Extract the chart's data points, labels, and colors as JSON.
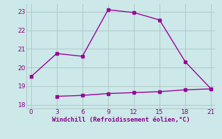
{
  "line1_x": [
    0,
    3,
    6,
    9,
    12,
    15,
    18,
    21
  ],
  "line1_y": [
    19.5,
    20.75,
    20.6,
    23.1,
    22.95,
    22.55,
    20.3,
    18.85
  ],
  "line2_x": [
    3,
    6,
    9,
    12,
    15,
    18,
    21
  ],
  "line2_y": [
    18.45,
    18.5,
    18.6,
    18.65,
    18.7,
    18.8,
    18.85
  ],
  "line_color": "#990099",
  "bg_color": "#cce8e8",
  "grid_color": "#b0c8c8",
  "xlabel": "Windchill (Refroidissement éolien,°C)",
  "xlim": [
    -0.5,
    21.5
  ],
  "ylim": [
    17.8,
    23.4
  ],
  "xticks": [
    0,
    3,
    6,
    9,
    12,
    15,
    18,
    21
  ],
  "yticks": [
    18,
    19,
    20,
    21,
    22,
    23
  ],
  "xlabel_color": "#880088",
  "tick_color": "#880088",
  "tick_label_color": "#880088",
  "markersize": 3,
  "linewidth": 1.0
}
